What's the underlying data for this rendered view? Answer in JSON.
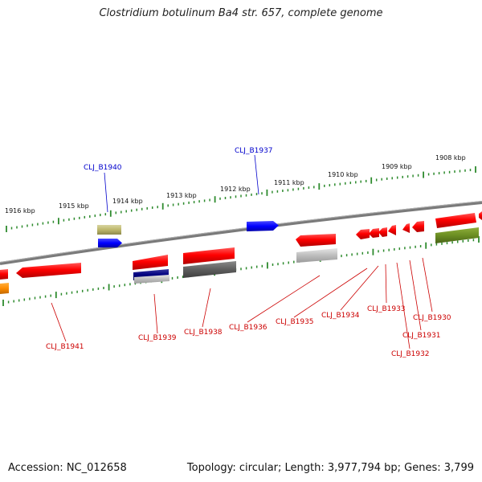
{
  "title": "Clostridium botulinum Ba4 str. 657, complete genome",
  "footer": {
    "accession": "Accession: NC_012658",
    "summary": "Topology: circular; Length: 3,977,794 bp; Genes: 3,799"
  },
  "colors": {
    "backbone": "#7a7a7a",
    "tick": "#2e8b2e",
    "label_blue": "#0000cc",
    "label_red": "#cc0000"
  },
  "scale_labels": [
    "1916 kbp",
    "1915 kbp",
    "1914 kbp",
    "1913 kbp",
    "1912 kbp",
    "1911 kbp",
    "1910 kbp",
    "1909 kbp",
    "1908 kbp"
  ],
  "gene_labels": {
    "CLJ_B1940": "CLJ_B1940",
    "CLJ_B1937": "CLJ_B1937",
    "CLJ_B1941": "CLJ_B1941",
    "CLJ_B1939": "CLJ_B1939",
    "CLJ_B1938": "CLJ_B1938",
    "CLJ_B1936": "CLJ_B1936",
    "CLJ_B1935": "CLJ_B1935",
    "CLJ_B1934": "CLJ_B1934",
    "CLJ_B1933": "CLJ_B1933",
    "CLJ_B1932": "CLJ_B1932",
    "CLJ_B1931": "CLJ_B1931",
    "CLJ_B1930": "CLJ_B1930"
  }
}
